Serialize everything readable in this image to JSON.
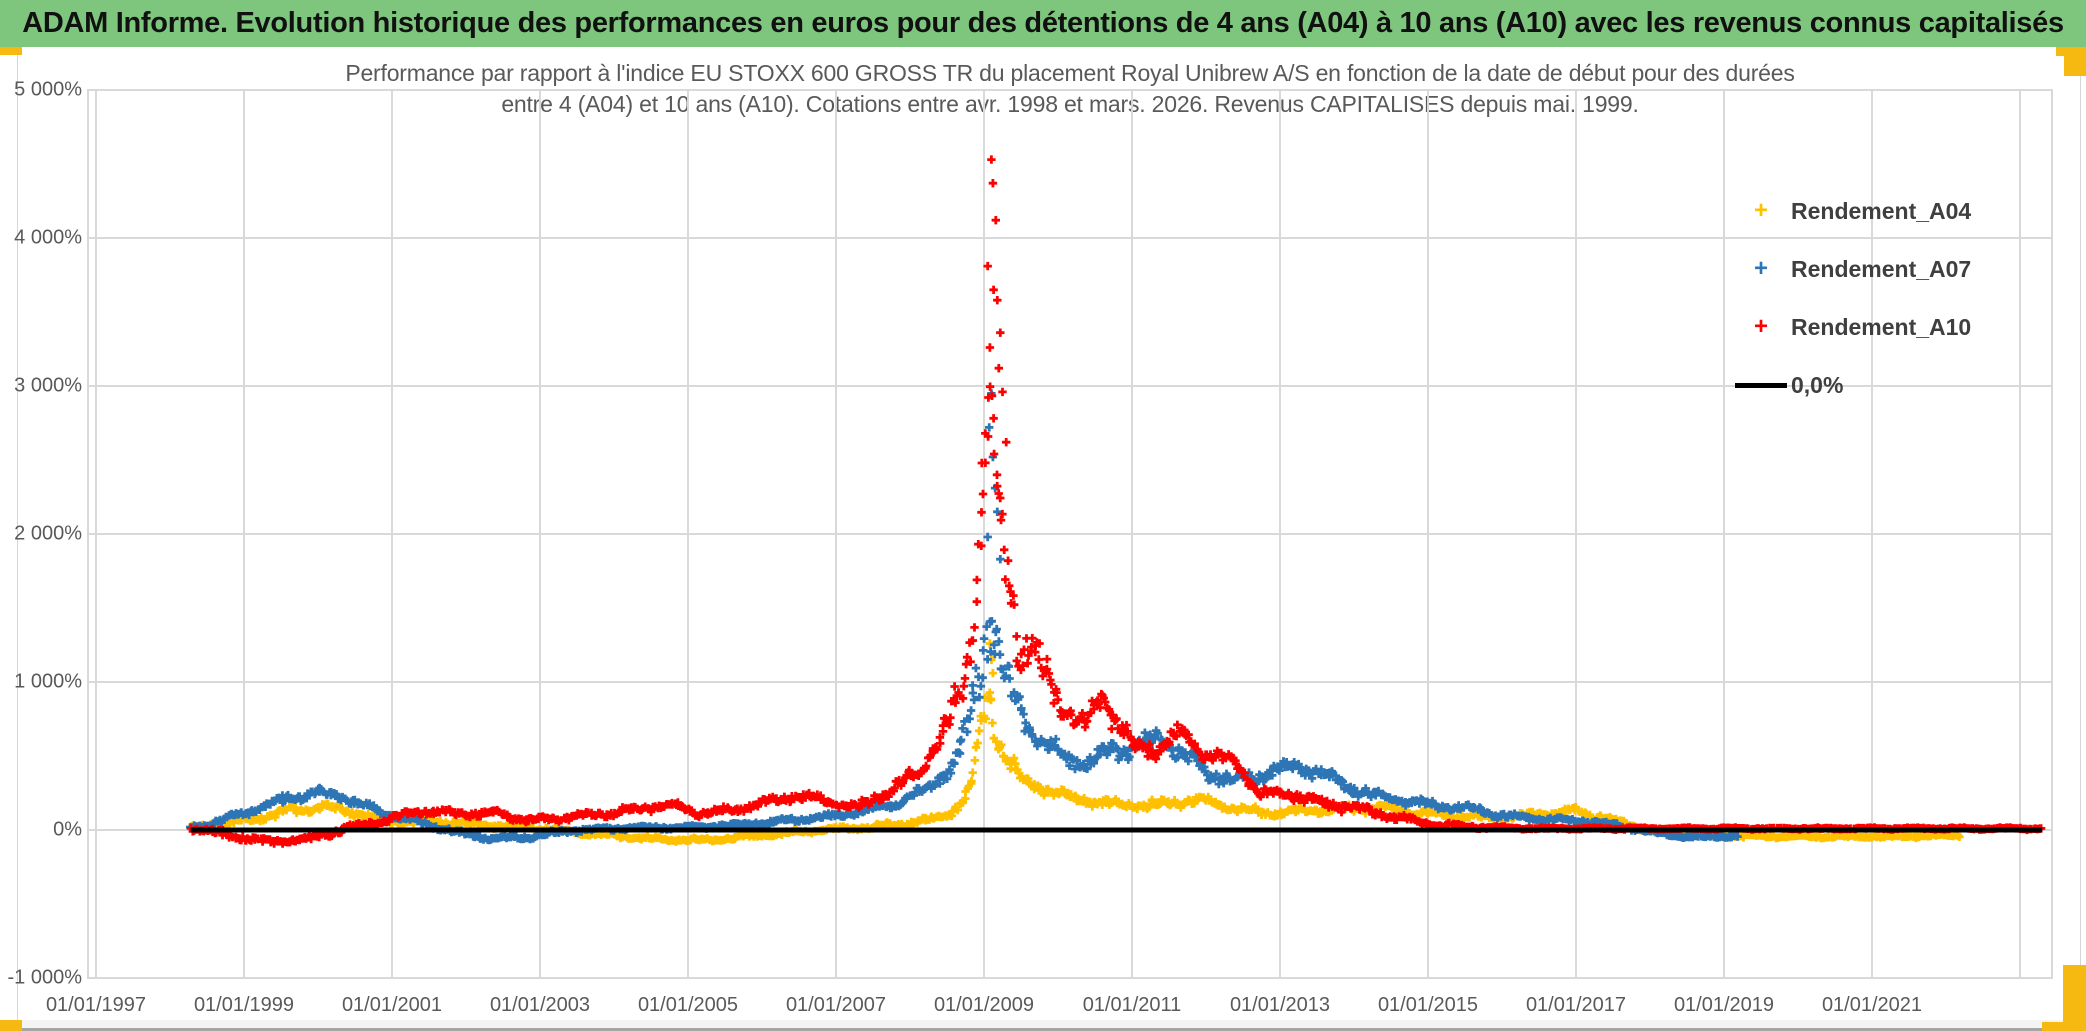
{
  "header": {
    "title": "ADAM Informe. Evolution historique des performances en euros pour des détentions de 4 ans (A04) à 10 ans (A10) avec les revenus connus capitalisés",
    "bg_color": "#7ec67e",
    "accent_color": "#f6b912"
  },
  "chart_data": {
    "type": "scatter",
    "title_lines": [
      "Performance par rapport à l'indice EU STOXX 600 GROSS TR  du placement Royal Unibrew A/S en fonction de la date de début pour des durées",
      "entre 4 (A04) et 10 ans (A10). Cotations entre avr. 1998 et mars. 2026. Revenus CAPITALISES depuis mai. 1999."
    ],
    "grid_color": "#d9d9d9",
    "axis_text_color": "#595959",
    "x_axis": {
      "gridline_years": [
        1997,
        1999,
        2001,
        2003,
        2005,
        2007,
        2009,
        2011,
        2013,
        2015,
        2017,
        2019,
        2021,
        2023
      ],
      "ticks": [
        {
          "year": 1997,
          "label": "01/01/1997"
        },
        {
          "year": 1999,
          "label": "01/01/1999"
        },
        {
          "year": 2001,
          "label": "01/01/2001"
        },
        {
          "year": 2003,
          "label": "01/01/2003"
        },
        {
          "year": 2005,
          "label": "01/01/2005"
        },
        {
          "year": 2007,
          "label": "01/01/2007"
        },
        {
          "year": 2009,
          "label": "01/01/2009"
        },
        {
          "year": 2011,
          "label": "01/01/2011"
        },
        {
          "year": 2013,
          "label": "01/01/2013"
        },
        {
          "year": 2015,
          "label": "01/01/2015"
        },
        {
          "year": 2017,
          "label": "01/01/2017"
        },
        {
          "year": 2019,
          "label": "01/01/2019"
        },
        {
          "year": 2021,
          "label": "01/01/2021"
        }
      ],
      "min_year": 1996.9,
      "max_year": 2023.45
    },
    "y_axis": {
      "min": -1000,
      "max": 5000,
      "ticks": [
        {
          "value": 5000,
          "label": "5 000%"
        },
        {
          "value": 4000,
          "label": "4 000%"
        },
        {
          "value": 3000,
          "label": "3 000%"
        },
        {
          "value": 2000,
          "label": "2 000%"
        },
        {
          "value": 1000,
          "label": "1 000%"
        },
        {
          "value": 0,
          "label": "0%"
        },
        {
          "value": -1000,
          "label": "-1 000%"
        }
      ]
    },
    "legend": [
      {
        "label": "Rendement_A04",
        "color": "#FFC000",
        "marker": "plus"
      },
      {
        "label": "Rendement_A07",
        "color": "#2E75B6",
        "marker": "plus"
      },
      {
        "label": "Rendement_A10",
        "color": "#FF0000",
        "marker": "plus"
      },
      {
        "label": "0,0%",
        "color": "#000000",
        "marker": "line"
      }
    ],
    "zero_line": {
      "label": "0,0%",
      "value": 0,
      "start_year": 1998.28,
      "end_year": 2023.3,
      "color": "#000000"
    },
    "series": [
      {
        "name": "Rendement_A04",
        "color": "#FFC000",
        "seed": 11,
        "phase": 0.8,
        "points": [
          [
            1998.28,
            10,
            25
          ],
          [
            1999.0,
            60,
            30
          ],
          [
            1999.6,
            130,
            35
          ],
          [
            2000.1,
            155,
            35
          ],
          [
            2000.6,
            110,
            30
          ],
          [
            2000.9,
            60,
            26
          ],
          [
            2001.5,
            60,
            26
          ],
          [
            2002.0,
            45,
            24
          ],
          [
            2002.7,
            20,
            22
          ],
          [
            2003.2,
            0,
            20
          ],
          [
            2003.8,
            -30,
            18
          ],
          [
            2004.5,
            -60,
            18
          ],
          [
            2005.2,
            -70,
            18
          ],
          [
            2005.8,
            -45,
            18
          ],
          [
            2006.3,
            -20,
            18
          ],
          [
            2006.9,
            5,
            18
          ],
          [
            2007.4,
            15,
            18
          ],
          [
            2007.9,
            40,
            22
          ],
          [
            2008.3,
            70,
            28
          ],
          [
            2008.6,
            130,
            40
          ],
          [
            2008.8,
            260,
            70
          ],
          [
            2008.95,
            600,
            150
          ],
          [
            2009.06,
            980,
            190
          ],
          [
            2009.18,
            640,
            140
          ],
          [
            2009.3,
            480,
            95
          ],
          [
            2009.5,
            340,
            65
          ],
          [
            2009.8,
            290,
            50
          ],
          [
            2010.2,
            210,
            42
          ],
          [
            2010.7,
            180,
            38
          ],
          [
            2011.2,
            165,
            36
          ],
          [
            2011.6,
            185,
            38
          ],
          [
            2011.95,
            205,
            40
          ],
          [
            2012.35,
            150,
            34
          ],
          [
            2012.8,
            115,
            30
          ],
          [
            2013.3,
            125,
            30
          ],
          [
            2013.9,
            145,
            32
          ],
          [
            2014.4,
            150,
            32
          ],
          [
            2014.9,
            115,
            28
          ],
          [
            2015.4,
            95,
            26
          ],
          [
            2015.9,
            85,
            26
          ],
          [
            2016.4,
            105,
            28
          ],
          [
            2016.95,
            130,
            30
          ],
          [
            2017.3,
            95,
            28
          ],
          [
            2017.7,
            35,
            20
          ],
          [
            2018.2,
            -20,
            15
          ],
          [
            2018.8,
            -40,
            13
          ],
          [
            2019.6,
            -42,
            13
          ],
          [
            2020.4,
            -46,
            13
          ],
          [
            2021.2,
            -44,
            12
          ],
          [
            2022.2,
            -35,
            12
          ]
        ],
        "extremes": [
          [
            2009.08,
            1260
          ],
          [
            2009.1,
            1150
          ],
          [
            2009.12,
            1060
          ]
        ]
      },
      {
        "name": "Rendement_A07",
        "color": "#2E75B6",
        "seed": 22,
        "phase": 2.1,
        "points": [
          [
            1998.28,
            15,
            25
          ],
          [
            1998.8,
            80,
            30
          ],
          [
            1999.4,
            185,
            40
          ],
          [
            1999.95,
            255,
            45
          ],
          [
            2000.35,
            220,
            40
          ],
          [
            2000.8,
            130,
            32
          ],
          [
            2001.3,
            60,
            26
          ],
          [
            2001.9,
            -20,
            20
          ],
          [
            2002.35,
            -60,
            20
          ],
          [
            2002.85,
            -45,
            20
          ],
          [
            2003.35,
            -10,
            18
          ],
          [
            2003.9,
            10,
            16
          ],
          [
            2004.5,
            15,
            16
          ],
          [
            2005.1,
            22,
            16
          ],
          [
            2005.7,
            32,
            17
          ],
          [
            2006.2,
            60,
            20
          ],
          [
            2006.8,
            85,
            22
          ],
          [
            2007.3,
            120,
            26
          ],
          [
            2007.8,
            175,
            32
          ],
          [
            2008.2,
            265,
            48
          ],
          [
            2008.55,
            420,
            75
          ],
          [
            2008.8,
            680,
            140
          ],
          [
            2008.95,
            1150,
            280
          ],
          [
            2009.07,
            1520,
            380
          ],
          [
            2009.15,
            1380,
            260
          ],
          [
            2009.3,
            950,
            190
          ],
          [
            2009.5,
            780,
            130
          ],
          [
            2009.75,
            620,
            100
          ],
          [
            2010.05,
            490,
            85
          ],
          [
            2010.4,
            460,
            75
          ],
          [
            2010.9,
            560,
            85
          ],
          [
            2011.4,
            610,
            85
          ],
          [
            2011.7,
            520,
            75
          ],
          [
            2012.05,
            370,
            62
          ],
          [
            2012.45,
            340,
            58
          ],
          [
            2012.95,
            405,
            62
          ],
          [
            2013.45,
            415,
            62
          ],
          [
            2013.85,
            310,
            52
          ],
          [
            2014.25,
            235,
            46
          ],
          [
            2014.65,
            205,
            42
          ],
          [
            2015.05,
            165,
            36
          ],
          [
            2015.55,
            145,
            33
          ],
          [
            2016.05,
            95,
            28
          ],
          [
            2016.6,
            72,
            25
          ],
          [
            2017.1,
            60,
            22
          ],
          [
            2017.6,
            30,
            18
          ],
          [
            2018.0,
            -12,
            15
          ],
          [
            2018.5,
            -48,
            14
          ],
          [
            2019.2,
            -40,
            14
          ]
        ],
        "extremes": [
          [
            2009.1,
            2950
          ],
          [
            2009.07,
            2720
          ],
          [
            2009.12,
            2520
          ],
          [
            2009.15,
            2310
          ],
          [
            2009.18,
            2150
          ],
          [
            2009.05,
            1980
          ],
          [
            2009.22,
            1830
          ]
        ]
      },
      {
        "name": "Rendement_A10",
        "color": "#FF0000",
        "seed": 33,
        "phase": 4.0,
        "points": [
          [
            1998.28,
            20,
            28
          ],
          [
            1998.8,
            -40,
            28
          ],
          [
            1999.3,
            -78,
            26
          ],
          [
            1999.9,
            -60,
            26
          ],
          [
            2000.4,
            15,
            26
          ],
          [
            2000.9,
            60,
            28
          ],
          [
            2001.35,
            130,
            32
          ],
          [
            2001.9,
            112,
            30
          ],
          [
            2002.4,
            112,
            30
          ],
          [
            2002.9,
            62,
            28
          ],
          [
            2003.4,
            90,
            28
          ],
          [
            2003.95,
            112,
            30
          ],
          [
            2004.45,
            150,
            32
          ],
          [
            2004.75,
            172,
            32
          ],
          [
            2005.15,
            112,
            28
          ],
          [
            2005.6,
            132,
            30
          ],
          [
            2006.0,
            182,
            35
          ],
          [
            2006.45,
            232,
            38
          ],
          [
            2006.95,
            190,
            35
          ],
          [
            2007.3,
            152,
            34
          ],
          [
            2007.7,
            255,
            48
          ],
          [
            2008.05,
            360,
            62
          ],
          [
            2008.4,
            600,
            95
          ],
          [
            2008.7,
            920,
            160
          ],
          [
            2008.9,
            1600,
            380
          ],
          [
            2009.02,
            2750,
            650
          ],
          [
            2009.12,
            2500,
            480
          ],
          [
            2009.22,
            1950,
            320
          ],
          [
            2009.35,
            1700,
            260
          ],
          [
            2009.5,
            1230,
            200
          ],
          [
            2009.65,
            1260,
            185
          ],
          [
            2009.85,
            1010,
            155
          ],
          [
            2010.1,
            810,
            125
          ],
          [
            2010.35,
            690,
            105
          ],
          [
            2010.6,
            900,
            125
          ],
          [
            2010.85,
            700,
            100
          ],
          [
            2011.05,
            530,
            82
          ],
          [
            2011.35,
            565,
            82
          ],
          [
            2011.65,
            655,
            88
          ],
          [
            2011.95,
            525,
            72
          ],
          [
            2012.15,
            505,
            68
          ],
          [
            2012.45,
            425,
            62
          ],
          [
            2012.75,
            245,
            48
          ],
          [
            2013.2,
            235,
            46
          ],
          [
            2013.6,
            175,
            40
          ],
          [
            2014.0,
            155,
            36
          ],
          [
            2014.5,
            95,
            30
          ],
          [
            2015.0,
            45,
            22
          ],
          [
            2015.5,
            22,
            15
          ],
          [
            2016.0,
            14,
            10
          ],
          [
            2016.5,
            10,
            8
          ],
          [
            2023.3,
            10,
            8
          ]
        ],
        "extremes": [
          [
            2009.1,
            4530
          ],
          [
            2009.12,
            4370
          ],
          [
            2009.16,
            4120
          ],
          [
            2009.05,
            3810
          ],
          [
            2009.13,
            3650
          ],
          [
            2009.18,
            3580
          ],
          [
            2009.08,
            3260
          ],
          [
            2009.22,
            3360
          ],
          [
            2009.2,
            3120
          ],
          [
            2009.25,
            2960
          ],
          [
            2009.3,
            2620
          ],
          [
            2008.97,
            2480
          ]
        ]
      }
    ]
  }
}
